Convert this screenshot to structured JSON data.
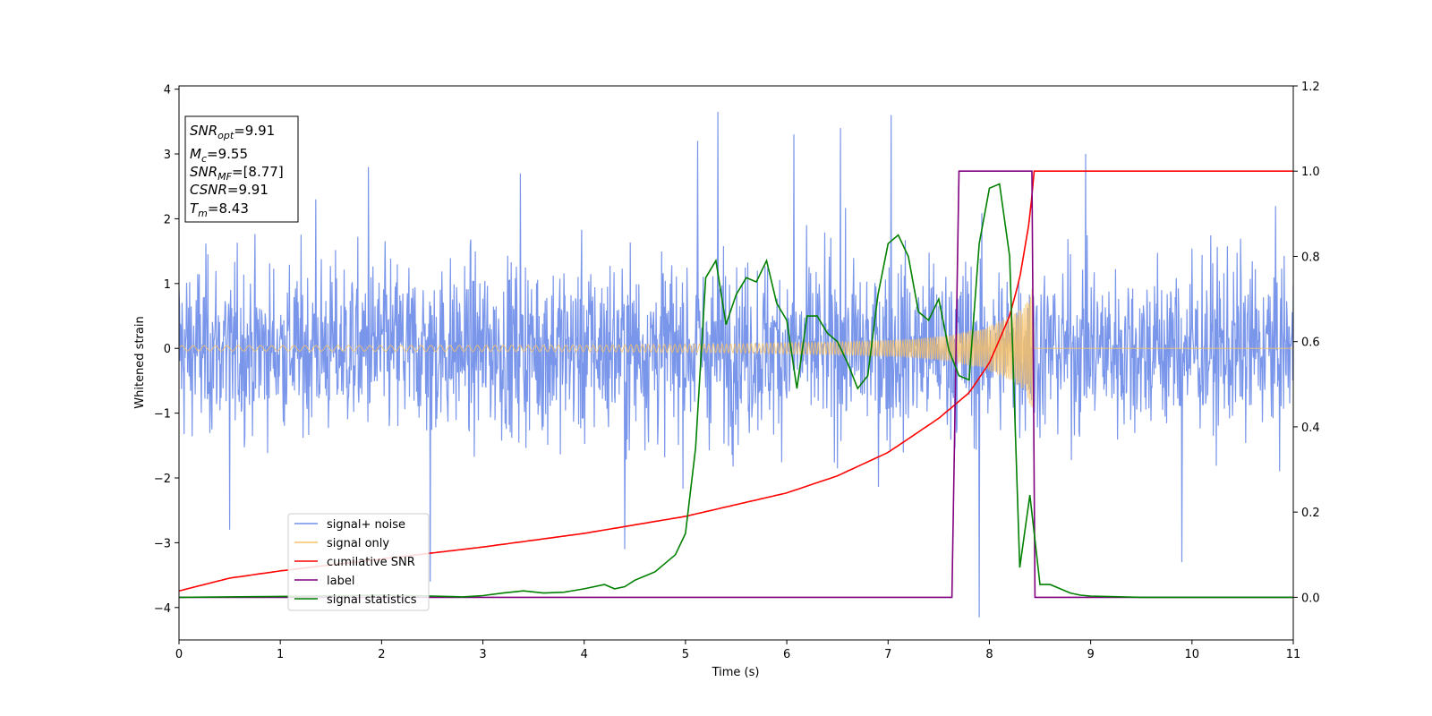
{
  "chart_data": {
    "type": "line",
    "title": "",
    "xlabel": "Time (s)",
    "ylabel": "Whitened strain",
    "xlim": [
      0,
      11
    ],
    "ylim": [
      -4.5,
      4.05
    ],
    "y2lim": [
      -0.1,
      1.2
    ],
    "xticks": [
      "0",
      "1",
      "2",
      "3",
      "4",
      "5",
      "6",
      "7",
      "8",
      "9",
      "10",
      "11"
    ],
    "yticks": [
      "−4",
      "−3",
      "−2",
      "−1",
      "0",
      "1",
      "2",
      "3",
      "4"
    ],
    "y2ticks": [
      "0.0",
      "0.2",
      "0.4",
      "0.6",
      "0.8",
      "1.0",
      "1.2"
    ],
    "grid": false,
    "legend_position": "lower-left",
    "annotation": {
      "snr_opt": "=9.91",
      "mc": "=9.55",
      "snr_mf": "=[8.77]",
      "csnr": "=9.91",
      "tm": "=8.43"
    },
    "series": [
      {
        "name": "signal+ noise",
        "color": "#4169e1",
        "axis": "left",
        "style": "noise",
        "noise_envelope": [
          2.3,
          2.1,
          2.3,
          2.2,
          2.4,
          2.3,
          2.2,
          2.4,
          2.3,
          2.2,
          2.3,
          2.3
        ],
        "x": [
          0.5,
          1.35,
          1.87,
          2.48,
          3.37,
          4.4,
          5.12,
          5.32,
          6.07,
          6.53,
          7.03,
          7.9,
          8.95,
          9.9
        ],
        "y": [
          -2.8,
          2.3,
          2.8,
          -3.6,
          2.7,
          -3.1,
          3.2,
          3.65,
          3.3,
          3.4,
          3.6,
          -4.15,
          3.0,
          -3.3
        ]
      },
      {
        "name": "signal only",
        "color": "#f5c16a",
        "axis": "left",
        "style": "chirp",
        "x": [
          0,
          4.0,
          5.5,
          6.5,
          7.2,
          7.6,
          8.0,
          8.2,
          8.35,
          8.43,
          8.44,
          11
        ],
        "y": [
          0.04,
          0.05,
          0.07,
          0.1,
          0.14,
          0.2,
          0.35,
          0.5,
          0.65,
          1.0,
          0.0,
          0.0
        ]
      },
      {
        "name": "cumilative SNR",
        "color": "#ff0000",
        "axis": "right",
        "x": [
          0,
          0.5,
          1,
          2,
          3,
          4,
          5,
          6,
          6.5,
          7,
          7.5,
          7.8,
          8.0,
          8.2,
          8.3,
          8.4,
          8.43,
          8.44,
          11
        ],
        "y": [
          0.015,
          0.045,
          0.062,
          0.09,
          0.118,
          0.15,
          0.19,
          0.245,
          0.285,
          0.34,
          0.42,
          0.48,
          0.55,
          0.66,
          0.75,
          0.89,
          0.97,
          1.0,
          1.0
        ]
      },
      {
        "name": "label",
        "color": "#800080",
        "axis": "right",
        "x": [
          0,
          7.63,
          7.7,
          8.42,
          8.45,
          11
        ],
        "y": [
          0,
          0,
          1,
          1,
          0,
          0
        ]
      },
      {
        "name": "signal statistics",
        "color": "#008000",
        "axis": "right",
        "x": [
          0,
          1,
          2,
          2.5,
          2.8,
          3.0,
          3.2,
          3.4,
          3.6,
          3.8,
          4.0,
          4.2,
          4.3,
          4.4,
          4.5,
          4.6,
          4.7,
          4.8,
          4.9,
          5.0,
          5.1,
          5.2,
          5.3,
          5.4,
          5.5,
          5.6,
          5.7,
          5.8,
          5.9,
          6.0,
          6.1,
          6.2,
          6.3,
          6.4,
          6.5,
          6.6,
          6.7,
          6.8,
          6.9,
          7.0,
          7.1,
          7.2,
          7.3,
          7.4,
          7.5,
          7.6,
          7.7,
          7.8,
          7.9,
          8.0,
          8.1,
          8.2,
          8.3,
          8.4,
          8.5,
          8.6,
          8.7,
          8.8,
          8.9,
          9.0,
          9.5,
          11
        ],
        "y": [
          0.0,
          0.002,
          0.005,
          0.003,
          0.001,
          0.004,
          0.01,
          0.015,
          0.01,
          0.012,
          0.02,
          0.03,
          0.02,
          0.025,
          0.04,
          0.05,
          0.06,
          0.08,
          0.1,
          0.15,
          0.35,
          0.75,
          0.79,
          0.64,
          0.71,
          0.75,
          0.74,
          0.79,
          0.69,
          0.65,
          0.49,
          0.66,
          0.66,
          0.62,
          0.6,
          0.55,
          0.49,
          0.52,
          0.71,
          0.83,
          0.85,
          0.8,
          0.67,
          0.65,
          0.7,
          0.58,
          0.52,
          0.51,
          0.83,
          0.96,
          0.97,
          0.8,
          0.07,
          0.24,
          0.03,
          0.03,
          0.02,
          0.01,
          0.005,
          0.003,
          0.0,
          0.0
        ]
      }
    ]
  }
}
